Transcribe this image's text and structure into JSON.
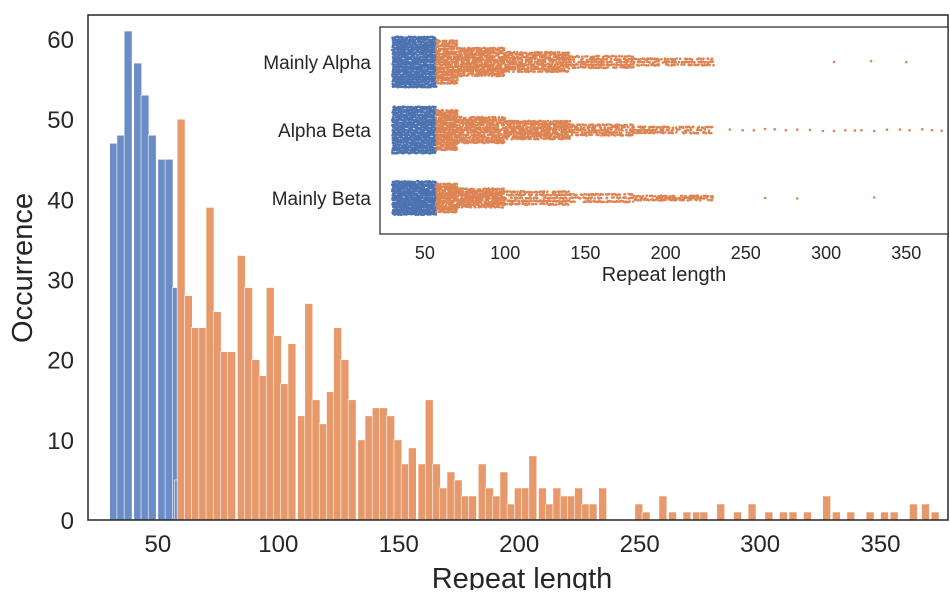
{
  "chart_data": [
    {
      "type": "bar",
      "subtype": "histogram",
      "xlabel": "Repeat length",
      "ylabel": "Occurrence",
      "xlim": [
        21,
        378
      ],
      "ylim": [
        0,
        63
      ],
      "xticks": [
        50,
        100,
        150,
        200,
        250,
        300,
        350
      ],
      "yticks": [
        0,
        10,
        20,
        30,
        40,
        50,
        60
      ],
      "bin_width": 3.3,
      "grid": false,
      "colors": {
        "short_repeats": "#6a8cc7",
        "long_repeats": "#e8996b",
        "bar_edge": "#ffffff"
      },
      "series": [
        {
          "values": [
            {
              "x": 30,
              "y": 47
            },
            {
              "x": 33,
              "y": 48
            },
            {
              "x": 36,
              "y": 61
            },
            {
              "x": 40,
              "y": 57
            },
            {
              "x": 43,
              "y": 53
            },
            {
              "x": 46,
              "y": 48
            },
            {
              "x": 50,
              "y": 45
            },
            {
              "x": 53,
              "y": 45
            },
            {
              "x": 56,
              "y": 29
            },
            {
              "x": 57,
              "y": 5
            }
          ]
        },
        {
          "values": [
            {
              "x": 58,
              "y": 50
            },
            {
              "x": 61,
              "y": 28
            },
            {
              "x": 64,
              "y": 24
            },
            {
              "x": 67,
              "y": 24
            },
            {
              "x": 70,
              "y": 39
            },
            {
              "x": 73,
              "y": 26
            },
            {
              "x": 76,
              "y": 21
            },
            {
              "x": 79,
              "y": 21
            },
            {
              "x": 83,
              "y": 33
            },
            {
              "x": 86,
              "y": 29
            },
            {
              "x": 89,
              "y": 20
            },
            {
              "x": 92,
              "y": 18
            },
            {
              "x": 95,
              "y": 29
            },
            {
              "x": 98,
              "y": 23
            },
            {
              "x": 101,
              "y": 17
            },
            {
              "x": 104,
              "y": 22
            },
            {
              "x": 108,
              "y": 13
            },
            {
              "x": 111,
              "y": 27
            },
            {
              "x": 114,
              "y": 15
            },
            {
              "x": 117,
              "y": 12
            },
            {
              "x": 120,
              "y": 16
            },
            {
              "x": 123,
              "y": 24
            },
            {
              "x": 126,
              "y": 20
            },
            {
              "x": 129,
              "y": 15
            },
            {
              "x": 133,
              "y": 10
            },
            {
              "x": 136,
              "y": 13
            },
            {
              "x": 139,
              "y": 14
            },
            {
              "x": 142,
              "y": 14
            },
            {
              "x": 145,
              "y": 13
            },
            {
              "x": 148,
              "y": 10
            },
            {
              "x": 151,
              "y": 7
            },
            {
              "x": 154,
              "y": 9
            },
            {
              "x": 158,
              "y": 7
            },
            {
              "x": 161,
              "y": 15
            },
            {
              "x": 164,
              "y": 7
            },
            {
              "x": 167,
              "y": 4
            },
            {
              "x": 170,
              "y": 6
            },
            {
              "x": 173,
              "y": 5
            },
            {
              "x": 176,
              "y": 3
            },
            {
              "x": 179,
              "y": 3
            },
            {
              "x": 183,
              "y": 7
            },
            {
              "x": 186,
              "y": 4
            },
            {
              "x": 189,
              "y": 3
            },
            {
              "x": 192,
              "y": 6
            },
            {
              "x": 195,
              "y": 2
            },
            {
              "x": 198,
              "y": 4
            },
            {
              "x": 201,
              "y": 4
            },
            {
              "x": 204,
              "y": 8
            },
            {
              "x": 208,
              "y": 4
            },
            {
              "x": 211,
              "y": 2
            },
            {
              "x": 214,
              "y": 4
            },
            {
              "x": 217,
              "y": 3
            },
            {
              "x": 220,
              "y": 3
            },
            {
              "x": 223,
              "y": 4
            },
            {
              "x": 226,
              "y": 2
            },
            {
              "x": 229,
              "y": 2
            },
            {
              "x": 233,
              "y": 4
            },
            {
              "x": 248,
              "y": 2
            },
            {
              "x": 251,
              "y": 1
            },
            {
              "x": 258,
              "y": 3
            },
            {
              "x": 262,
              "y": 1
            },
            {
              "x": 268,
              "y": 1
            },
            {
              "x": 272,
              "y": 1
            },
            {
              "x": 275,
              "y": 1
            },
            {
              "x": 282,
              "y": 2
            },
            {
              "x": 289,
              "y": 1
            },
            {
              "x": 295,
              "y": 2
            },
            {
              "x": 302,
              "y": 1
            },
            {
              "x": 308,
              "y": 1
            },
            {
              "x": 312,
              "y": 1
            },
            {
              "x": 318,
              "y": 1
            },
            {
              "x": 326,
              "y": 3
            },
            {
              "x": 330,
              "y": 1
            },
            {
              "x": 336,
              "y": 1
            },
            {
              "x": 344,
              "y": 1
            },
            {
              "x": 350,
              "y": 1
            },
            {
              "x": 354,
              "y": 1
            },
            {
              "x": 362,
              "y": 2
            },
            {
              "x": 367,
              "y": 2
            },
            {
              "x": 371,
              "y": 1
            }
          ]
        }
      ]
    },
    {
      "type": "scatter",
      "subtype": "swarm",
      "placement": "inset top-right",
      "xlabel": "Repeat length",
      "ylabel": "",
      "xlim": [
        22,
        376
      ],
      "xticks": [
        50,
        100,
        150,
        200,
        250,
        300,
        350
      ],
      "categories": [
        "Mainly Alpha",
        "Alpha Beta",
        "Mainly Beta"
      ],
      "colors": {
        "short_repeats": "#4c72b0",
        "long_repeats": "#dd8452"
      },
      "split_at": 57,
      "series": [
        {
          "category": "Mainly Alpha",
          "x_min": 30,
          "x_max": 350,
          "outliers": [
            305,
            328,
            350
          ]
        },
        {
          "category": "Alpha Beta",
          "x_min": 30,
          "x_max": 372,
          "outliers": [
            240,
            248,
            255,
            262,
            268,
            275,
            282,
            290,
            298,
            305,
            312,
            318,
            322,
            330,
            338,
            346,
            352,
            360,
            366,
            372
          ]
        },
        {
          "category": "Mainly Beta",
          "x_min": 30,
          "x_max": 330,
          "outliers": [
            262,
            282,
            330
          ]
        }
      ]
    }
  ]
}
